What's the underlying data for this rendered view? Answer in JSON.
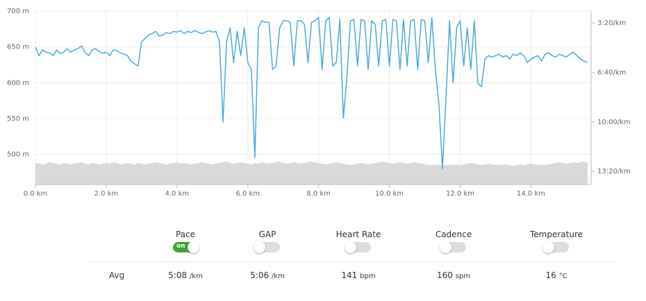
{
  "chart_data": {
    "type": "line",
    "xlim": [
      0,
      15.7
    ],
    "xticks": [
      {
        "value": 0,
        "label": "0.0 km"
      },
      {
        "value": 2,
        "label": "2.0 km"
      },
      {
        "value": 4,
        "label": "4.0 km"
      },
      {
        "value": 6,
        "label": "6.0 km"
      },
      {
        "value": 8,
        "label": "8.0 km"
      },
      {
        "value": 10,
        "label": "10.0 km"
      },
      {
        "value": 12,
        "label": "12.0 km"
      },
      {
        "value": 14,
        "label": "14.0 km"
      }
    ],
    "ylim": [
      458,
      700
    ],
    "yticks": [
      {
        "value": 500,
        "label": "500 m"
      },
      {
        "value": 550,
        "label": "550 m"
      },
      {
        "value": 600,
        "label": "600 m"
      },
      {
        "value": 650,
        "label": "650 m"
      },
      {
        "value": 700,
        "label": "700 m"
      }
    ],
    "y2lim": [
      853,
      152
    ],
    "y2ticks": [
      {
        "value": 200,
        "label": "3:20/km"
      },
      {
        "value": 400,
        "label": "6:40/km"
      },
      {
        "value": 600,
        "label": "10:00/km"
      },
      {
        "value": 800,
        "label": "13:20/km"
      }
    ],
    "grid": true,
    "x": [
      0,
      0.1,
      0.2,
      0.3,
      0.4,
      0.5,
      0.6,
      0.7,
      0.8,
      0.9,
      1,
      1.1,
      1.2,
      1.3,
      1.4,
      1.5,
      1.6,
      1.7,
      1.8,
      1.9,
      2,
      2.1,
      2.2,
      2.3,
      2.4,
      2.5,
      2.6,
      2.7,
      2.8,
      2.9,
      3,
      3.1,
      3.2,
      3.3,
      3.4,
      3.5,
      3.6,
      3.7,
      3.8,
      3.9,
      4,
      4.1,
      4.2,
      4.3,
      4.4,
      4.5,
      4.6,
      4.7,
      4.8,
      4.9,
      5,
      5.1,
      5.2,
      5.3,
      5.4,
      5.5,
      5.6,
      5.7,
      5.8,
      5.9,
      6,
      6.1,
      6.2,
      6.3,
      6.4,
      6.5,
      6.6,
      6.7,
      6.8,
      6.9,
      7,
      7.1,
      7.2,
      7.3,
      7.4,
      7.5,
      7.6,
      7.7,
      7.8,
      7.9,
      8,
      8.1,
      8.2,
      8.3,
      8.4,
      8.5,
      8.6,
      8.7,
      8.8,
      8.9,
      9,
      9.1,
      9.2,
      9.3,
      9.4,
      9.5,
      9.6,
      9.7,
      9.8,
      9.9,
      10,
      10.1,
      10.2,
      10.3,
      10.4,
      10.5,
      10.6,
      10.7,
      10.8,
      10.9,
      11,
      11.1,
      11.2,
      11.3,
      11.4,
      11.5,
      11.6,
      11.7,
      11.8,
      11.9,
      12,
      12.1,
      12.2,
      12.3,
      12.4,
      12.5,
      12.6,
      12.7,
      12.8,
      12.9,
      13,
      13.1,
      13.2,
      13.3,
      13.4,
      13.5,
      13.6,
      13.7,
      13.8,
      13.9,
      14,
      14.1,
      14.2,
      14.3,
      14.4,
      14.5,
      14.6,
      14.7,
      14.8,
      14.9,
      15,
      15.1,
      15.2,
      15.3,
      15.4,
      15.5,
      15.6
    ],
    "series": [
      {
        "kind": "area",
        "color": "#d9d9d9",
        "values": [
          487,
          488,
          486,
          487,
          489,
          488,
          487,
          486,
          488,
          487,
          486,
          487,
          488,
          489,
          487,
          486,
          488,
          487,
          486,
          487,
          488,
          487,
          489,
          488,
          486,
          487,
          488,
          487,
          486,
          488,
          487,
          486,
          487,
          488,
          489,
          488,
          487,
          486,
          487,
          488,
          489,
          487,
          488,
          487,
          486,
          487,
          488,
          489,
          488,
          487,
          486,
          487,
          488,
          489,
          490,
          488,
          487,
          488,
          489,
          488,
          487,
          486,
          488,
          487,
          489,
          488,
          487,
          488,
          489,
          490,
          488,
          487,
          488,
          489,
          488,
          487,
          488,
          489,
          490,
          489,
          488,
          487,
          486,
          487,
          488,
          489,
          488,
          487,
          486,
          485,
          486,
          487,
          488,
          487,
          486,
          487,
          488,
          489,
          490,
          489,
          488,
          487,
          488,
          489,
          488,
          487,
          488,
          489,
          488,
          487,
          486,
          485,
          485,
          486,
          485,
          484,
          485,
          486,
          485,
          486,
          485,
          486,
          487,
          488,
          487,
          486,
          485,
          486,
          487,
          486,
          485,
          486,
          485,
          486,
          485,
          484,
          485,
          486,
          485,
          486,
          487,
          486,
          485,
          486,
          485,
          486,
          487,
          488,
          489,
          488,
          487,
          488,
          489,
          488,
          489,
          490,
          488
        ]
      },
      {
        "kind": "line",
        "axis": "y2",
        "color": "#4aa8dc",
        "values": [
          298,
          332,
          309,
          318,
          321,
          332,
          309,
          324,
          318,
          304,
          318,
          309,
          304,
          293,
          318,
          332,
          309,
          304,
          315,
          323,
          318,
          332,
          309,
          312,
          321,
          326,
          332,
          354,
          365,
          374,
          276,
          262,
          248,
          243,
          234,
          253,
          248,
          239,
          243,
          234,
          237,
          231,
          243,
          234,
          239,
          231,
          237,
          243,
          237,
          231,
          237,
          234,
          276,
          601,
          276,
          220,
          360,
          234,
          332,
          220,
          360,
          388,
          744,
          220,
          191,
          197,
          197,
          388,
          374,
          220,
          191,
          191,
          197,
          374,
          191,
          191,
          206,
          360,
          197,
          191,
          178,
          388,
          191,
          178,
          374,
          360,
          186,
          584,
          420,
          191,
          186,
          374,
          186,
          191,
          388,
          191,
          206,
          374,
          191,
          186,
          374,
          186,
          191,
          388,
          186,
          374,
          191,
          186,
          388,
          186,
          191,
          360,
          178,
          388,
          528,
          789,
          500,
          191,
          444,
          220,
          191,
          374,
          220,
          388,
          191,
          444,
          458,
          346,
          332,
          338,
          332,
          326,
          338,
          332,
          346,
          326,
          332,
          321,
          332,
          360,
          346,
          338,
          332,
          354,
          326,
          321,
          332,
          338,
          326,
          332,
          338,
          326,
          318,
          332,
          346,
          354,
          360
        ]
      }
    ]
  },
  "controls": [
    {
      "name": "Pace",
      "on": true,
      "on_label": "on",
      "avg": "5:08",
      "unit": "/km"
    },
    {
      "name": "GAP",
      "on": false,
      "avg": "5:06",
      "unit": "/km"
    },
    {
      "name": "Heart Rate",
      "on": false,
      "avg": "141",
      "unit": "bpm"
    },
    {
      "name": "Cadence",
      "on": false,
      "avg": "160",
      "unit": "spm"
    },
    {
      "name": "Temperature",
      "on": false,
      "avg": "16",
      "unit": "°C"
    }
  ],
  "avg_label": "Avg"
}
